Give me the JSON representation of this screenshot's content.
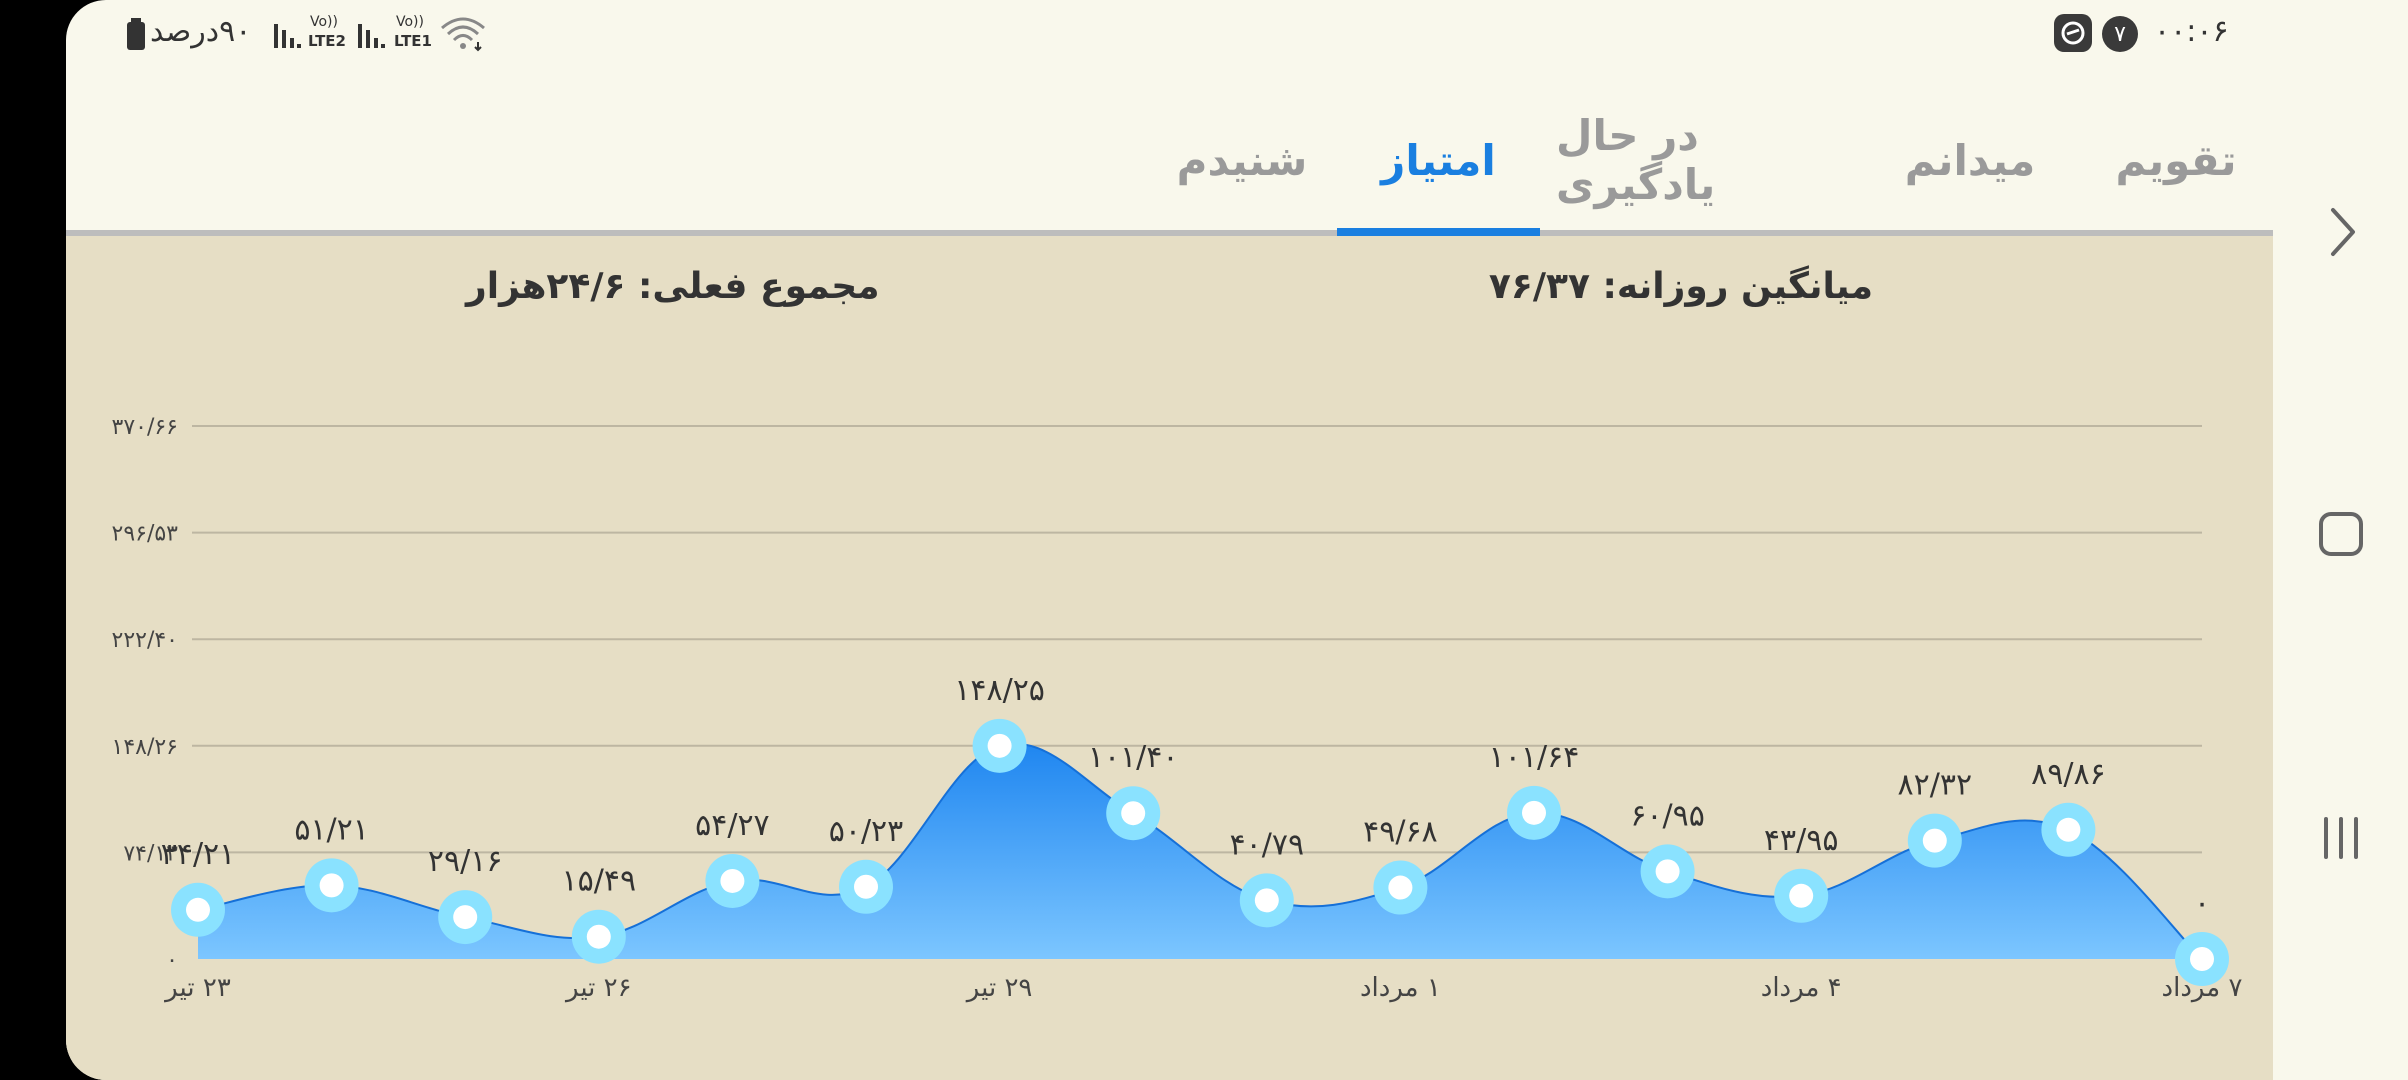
{
  "status_bar": {
    "time": "۰۰:۰۶",
    "notification_count": "۷",
    "battery_text": "۹۰درصد",
    "sim2_label": "LTE2",
    "sim1_label": "LTE1",
    "volte_label": "Vo))"
  },
  "tabs": [
    {
      "label": "تقویم"
    },
    {
      "label": "میدانم"
    },
    {
      "label": "در حال یادگیری"
    },
    {
      "label": "امتیاز",
      "active": true
    },
    {
      "label": "شنیدم"
    }
  ],
  "stats": {
    "daily_average": "میانگین روزانه: ۷۶/۳۷",
    "current_total": "مجموع فعلی: ۲۴/۶هزار"
  },
  "colors": {
    "accent": "#1a7fe0",
    "area_top": "#1f86f0",
    "area_bottom": "#7cc6ff",
    "marker_ring": "#8ae2ff",
    "card_bg": "#e6dec5",
    "page_bg": "#f9f8ec"
  },
  "chart_data": {
    "type": "area",
    "y_ticks": [
      "۰",
      "۷۴/۱۳",
      "۱۴۸/۲۶",
      "۲۲۲/۴۰",
      "۲۹۶/۵۳",
      "۳۷۰/۶۶"
    ],
    "ylim": [
      0,
      370.66
    ],
    "x_tick_labels": [
      "۲۳ تیر",
      "۲۶ تیر",
      "۲۹ تیر",
      "۱ مرداد",
      "۴ مرداد",
      "۷ مرداد"
    ],
    "x_tick_indices": [
      0,
      3,
      6,
      9,
      12,
      15
    ],
    "values": [
      34.21,
      51.21,
      29.16,
      15.49,
      54.27,
      50.23,
      148.25,
      101.4,
      40.79,
      49.68,
      101.64,
      60.95,
      43.95,
      82.32,
      89.86,
      0
    ],
    "value_labels": [
      "۳۴/۲۱",
      "۵۱/۲۱",
      "۲۹/۱۶",
      "۱۵/۴۹",
      "۵۴/۲۷",
      "۵۰/۲۳",
      "۱۴۸/۲۵",
      "۱۰۱/۴۰",
      "۴۰/۷۹",
      "۴۹/۶۸",
      "۱۰۱/۶۴",
      "۶۰/۹۵",
      "۴۳/۹۵",
      "۸۲/۳۲",
      "۸۹/۸۶",
      "۰"
    ],
    "grid": true,
    "legend": "none"
  },
  "nav": {
    "back_icon": "chevron-right-icon",
    "home_icon": "square-icon",
    "recents_icon": "three-bars-icon"
  }
}
